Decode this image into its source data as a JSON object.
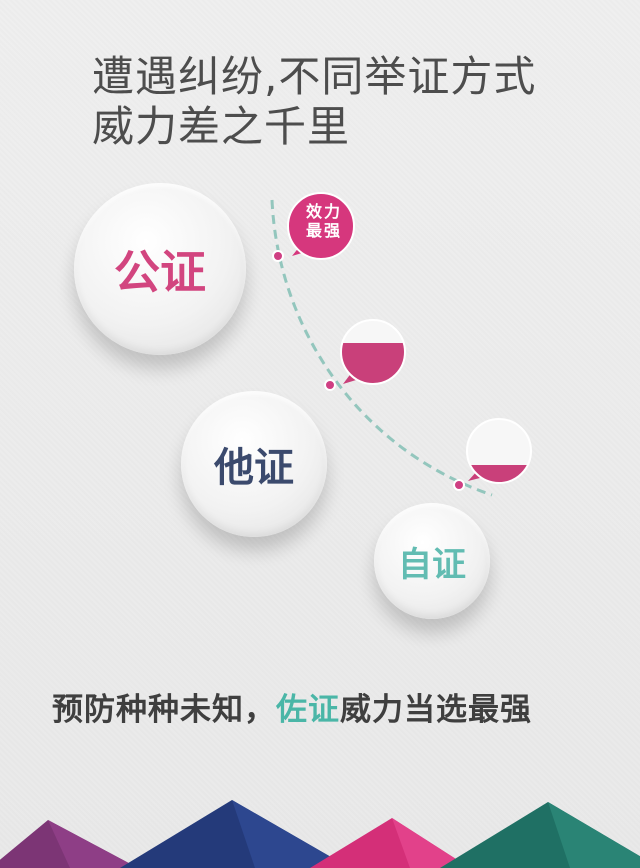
{
  "headline": {
    "line1": "遭遇纠纷,不同举证方式",
    "line2": "威力差之千里"
  },
  "circles": {
    "public": "公证",
    "other": "他证",
    "self": "自证"
  },
  "bubble": {
    "line1": "效力",
    "line2": "最强"
  },
  "tagline": {
    "part1": "预防种种未知，",
    "highlight": "佐证",
    "part2": "威力当选最强"
  },
  "colors": {
    "pink": "#d2457f",
    "navy": "#3b4a6d",
    "teal": "#62bcb2",
    "dashed_curve": "#93c6bd"
  }
}
